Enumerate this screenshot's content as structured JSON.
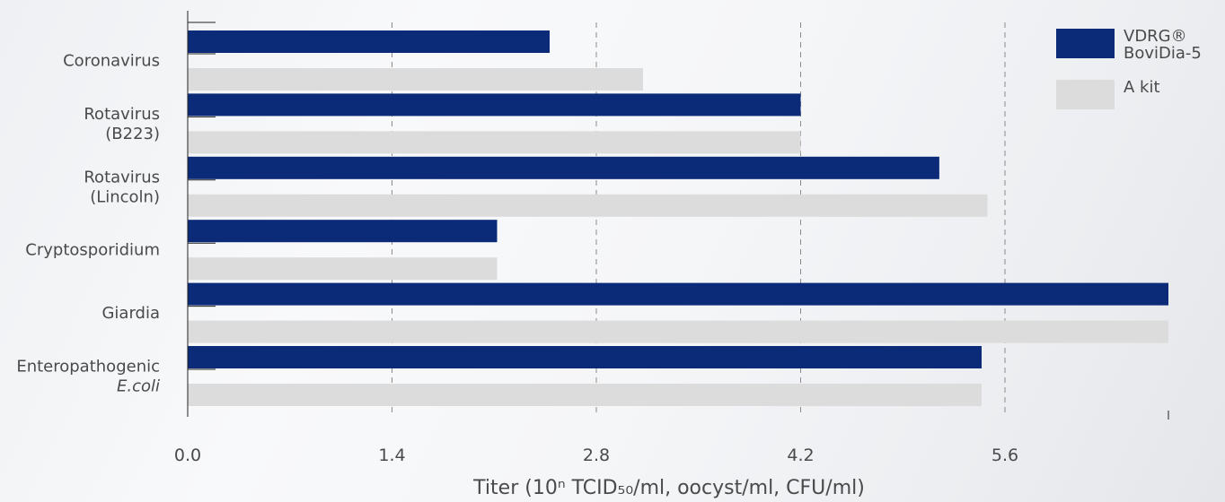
{
  "chart_data": {
    "type": "bar",
    "orientation": "horizontal",
    "categories": [
      [
        "Coronavirus"
      ],
      [
        "Rotavirus",
        "(B223)"
      ],
      [
        "Rotavirus",
        "(Lincoln)"
      ],
      [
        "Cryptosporidium"
      ],
      [
        "Giardia"
      ],
      [
        "Enteropathogenic",
        "E.coli"
      ]
    ],
    "italic_lines": {
      "5": [
        1
      ]
    },
    "series": [
      {
        "name": "VDRG® BoviDia-5",
        "legend_lines": [
          "VDRG®",
          "BoviDia-5"
        ],
        "values": [
          2.48,
          4.2,
          5.15,
          2.12,
          6.72,
          5.44
        ],
        "color": "#0b2a78"
      },
      {
        "name": "A kit",
        "legend_lines": [
          "A kit"
        ],
        "values": [
          3.12,
          4.2,
          5.48,
          2.12,
          6.72,
          5.44
        ],
        "color": "#dcdcdc"
      }
    ],
    "x_ticks": [
      "0.0",
      "1.4",
      "2.8",
      "4.2",
      "5.6"
    ],
    "x_tick_values": [
      0,
      1.4,
      2.8,
      4.2,
      5.6
    ],
    "xlim": [
      0,
      6.72
    ],
    "xlabel": "Titer (10ⁿ TCID₅₀/ml, oocyst/ml, CFU/ml)",
    "ylabel": "",
    "title": "",
    "grid": "vertical dashed",
    "legend": "top-right"
  }
}
